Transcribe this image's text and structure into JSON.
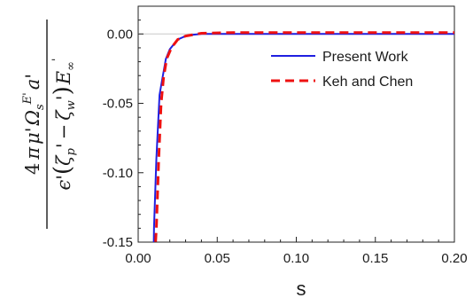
{
  "chart_data": {
    "type": "line",
    "xlabel": "s",
    "ylabel": {
      "numerator": "4 π μ' Ω_s^E' a'",
      "denominator": "ε'(ζ_p' − ζ_w') E_∞'"
    },
    "xlim": [
      0.0,
      0.2
    ],
    "ylim": [
      -0.15,
      0.02
    ],
    "xticks": [
      "0.00",
      "0.05",
      "0.10",
      "0.15",
      "0.20"
    ],
    "yticks": [
      "0.00",
      "-0.05",
      "-0.10",
      "-0.15"
    ],
    "x_tick_values": [
      0.0,
      0.05,
      0.1,
      0.15,
      0.2
    ],
    "y_tick_values": [
      0.0,
      -0.05,
      -0.1,
      -0.15
    ],
    "grid": false,
    "zero_line": true,
    "legend_placement": "top-right",
    "series": [
      {
        "name": "Present Work",
        "color": "#1f1fe0",
        "dash": "solid",
        "x": [
          0.0095,
          0.01,
          0.0115,
          0.0135,
          0.015,
          0.0175,
          0.02,
          0.025,
          0.03,
          0.035,
          0.04,
          0.06,
          0.1,
          0.15,
          0.2
        ],
        "y": [
          -0.18,
          -0.14,
          -0.09,
          -0.044,
          -0.034,
          -0.018,
          -0.011,
          -0.004,
          -0.0015,
          -0.0005,
          0.0,
          0.0,
          0.0,
          0.0,
          0.0
        ]
      },
      {
        "name": "Keh and Chen",
        "color": "#ee1111",
        "dash": "dashed",
        "x": [
          0.0105,
          0.0115,
          0.013,
          0.0145,
          0.016,
          0.018,
          0.021,
          0.025,
          0.03,
          0.035,
          0.04,
          0.06,
          0.1,
          0.15,
          0.2
        ],
        "y": [
          -0.16,
          -0.14,
          -0.09,
          -0.05,
          -0.032,
          -0.018,
          -0.01,
          -0.004,
          -0.0015,
          -0.0005,
          0.0005,
          0.001,
          0.001,
          0.001,
          0.001
        ]
      }
    ]
  }
}
